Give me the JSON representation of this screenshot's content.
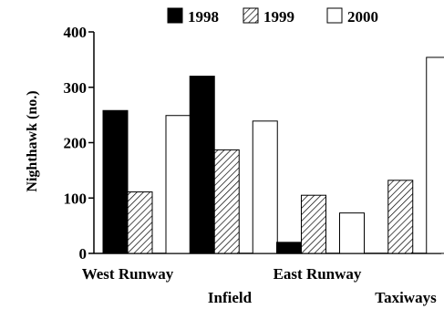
{
  "chart_data": {
    "type": "bar",
    "categories": [
      "West Runway",
      "Infield",
      "East Runway",
      "Taxiways"
    ],
    "series": [
      {
        "name": "1998",
        "values": [
          258,
          320,
          20,
          0
        ],
        "fill": "solid",
        "color": "#000000"
      },
      {
        "name": "1999",
        "values": [
          111,
          187,
          105,
          132
        ],
        "fill": "hatched",
        "color": "#000000"
      },
      {
        "name": "2000",
        "values": [
          249,
          239,
          73,
          354
        ],
        "fill": "white",
        "color": "#ffffff"
      }
    ],
    "title": "",
    "xlabel": "",
    "ylabel": "Nighthawk (no.)",
    "ylim": [
      0,
      400
    ],
    "yticks": [
      0,
      100,
      200,
      300,
      400
    ],
    "legend": "top",
    "grid": false
  }
}
